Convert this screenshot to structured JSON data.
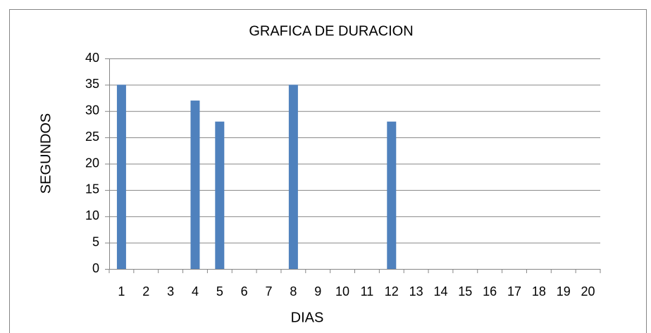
{
  "chart_data": {
    "type": "bar",
    "title": "GRAFICA DE DURACION",
    "x_label": "DIAS",
    "y_label": "SEGUNDOS",
    "categories": [
      "1",
      "2",
      "3",
      "4",
      "5",
      "6",
      "7",
      "8",
      "9",
      "10",
      "11",
      "12",
      "13",
      "14",
      "15",
      "16",
      "17",
      "18",
      "19",
      "20"
    ],
    "values": [
      35,
      0,
      0,
      32,
      28,
      0,
      0,
      35,
      0,
      0,
      0,
      28,
      0,
      0,
      0,
      0,
      0,
      0,
      0,
      0
    ],
    "color": "#4f81bd",
    "ylim": [
      0,
      40
    ],
    "yticks": [
      0,
      5,
      10,
      15,
      20,
      25,
      30,
      35,
      40
    ],
    "grid": true
  }
}
